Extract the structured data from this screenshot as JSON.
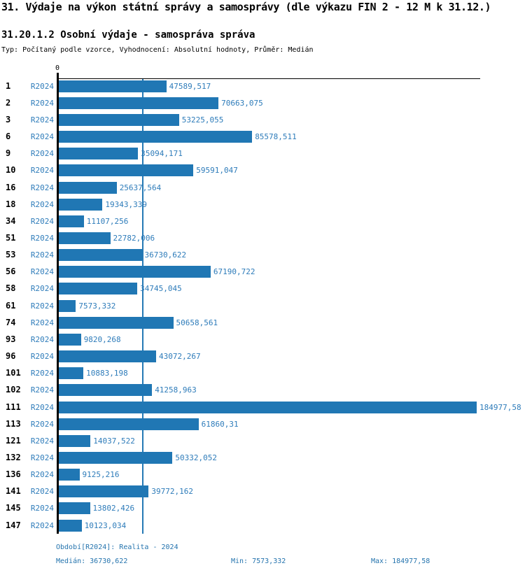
{
  "header": {
    "title": "31. Výdaje na výkon státní správy a samosprávy (dle výkazu FIN 2 - 12 M k 31.12.)",
    "subtitle": "31.20.1.2 Osobní výdaje - samospráva správa",
    "meta": "Typ: Počítaný podle vzorce, Vyhodnocení: Absolutní hodnoty, Průměr: Medián"
  },
  "chart_data": {
    "type": "bar",
    "orientation": "horizontal",
    "title": "31.20.1.2 Osobní výdaje - samospráva správa",
    "series_label": "R2024",
    "categories": [
      "1",
      "2",
      "3",
      "6",
      "9",
      "10",
      "16",
      "18",
      "34",
      "51",
      "53",
      "56",
      "58",
      "61",
      "74",
      "93",
      "96",
      "101",
      "102",
      "111",
      "113",
      "121",
      "132",
      "136",
      "141",
      "145",
      "147"
    ],
    "values": [
      47589.517,
      70663.075,
      53225.055,
      85578.511,
      35094.171,
      59591.047,
      25637.564,
      19343.339,
      11107.256,
      22782.006,
      36730.622,
      67190.722,
      34745.045,
      7573.332,
      50658.561,
      9820.268,
      43072.267,
      10883.198,
      41258.963,
      184977.58,
      61860.31,
      14037.522,
      50332.052,
      9125.216,
      39772.162,
      13802.426,
      10123.034
    ],
    "value_labels": [
      "47589,517",
      "70663,075",
      "53225,055",
      "85578,511",
      "35094,171",
      "59591,047",
      "25637,564",
      "19343,339",
      "11107,256",
      "22782,006",
      "36730,622",
      "67190,722",
      "34745,045",
      "7573,332",
      "50658,561",
      "9820,268",
      "43072,267",
      "10883,198",
      "41258,963",
      "184977,58",
      "61860,31",
      "14037,522",
      "50332,052",
      "9125,216",
      "39772,162",
      "13802,426",
      "10123,034"
    ],
    "xlim": [
      0,
      184977.58
    ],
    "zero_tick_label": "0",
    "median_value": 36730.622,
    "min_value": 7573.332,
    "max_value": 184977.58,
    "grid": false,
    "legend_position": "none",
    "bar_color": "#2077b4",
    "median_line_color": "#2579b5"
  },
  "footer": {
    "period": "Období[R2024]: Realita - 2024",
    "median": "Medián: 36730,622",
    "min": "Min: 7573,332",
    "max": "Max: 184977,58"
  },
  "colors": {
    "bar": "#2077b4",
    "blue_text": "#2e7cba",
    "footer_text": "#2574ae",
    "axis": "#000000",
    "background": "#ffffff"
  }
}
